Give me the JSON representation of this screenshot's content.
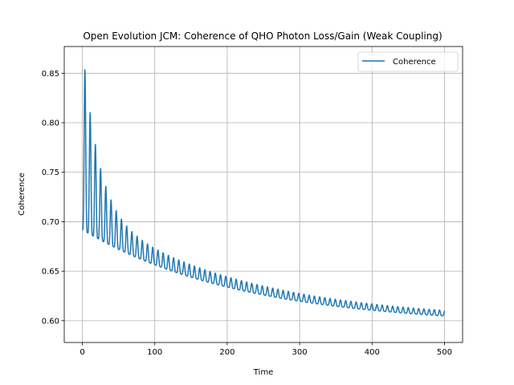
{
  "chart_data": {
    "type": "line",
    "title": "Open Evolution JCM: Coherence of QHO Photon Loss/Gain (Weak Coupling)",
    "xlabel": "Time",
    "ylabel": "Coherence",
    "xlim": [
      -25,
      525
    ],
    "ylim": [
      0.578,
      0.877
    ],
    "xticks": [
      0,
      100,
      200,
      300,
      400,
      500
    ],
    "yticks": [
      0.6,
      0.65,
      0.7,
      0.75,
      0.8,
      0.85
    ],
    "xtick_labels": [
      "0",
      "100",
      "200",
      "300",
      "400",
      "500"
    ],
    "ytick_labels": [
      "0.60",
      "0.65",
      "0.70",
      "0.75",
      "0.80",
      "0.85"
    ],
    "grid": true,
    "legend_position": "top-right",
    "series": [
      {
        "name": "Coherence",
        "color": "#1f77b4",
        "model": "damped oscillation; baseline decays from ~0.692 to ~0.595, oscillation period ~7.2, amplitude decays from ~0.17",
        "x": [
          0,
          3,
          7,
          10,
          14,
          17,
          21,
          24,
          28,
          31,
          35,
          38,
          42,
          46,
          50,
          60,
          70,
          80,
          100,
          125,
          150,
          175,
          200,
          250,
          300,
          350,
          400,
          450,
          500
        ],
        "y": [
          0.692,
          0.865,
          0.69,
          0.822,
          0.69,
          0.796,
          0.689,
          0.777,
          0.688,
          0.762,
          0.686,
          0.748,
          0.684,
          0.737,
          0.682,
          0.708,
          0.676,
          0.69,
          0.668,
          0.66,
          0.652,
          0.646,
          0.64,
          0.628,
          0.62,
          0.613,
          0.606,
          0.6,
          0.595
        ]
      }
    ]
  }
}
